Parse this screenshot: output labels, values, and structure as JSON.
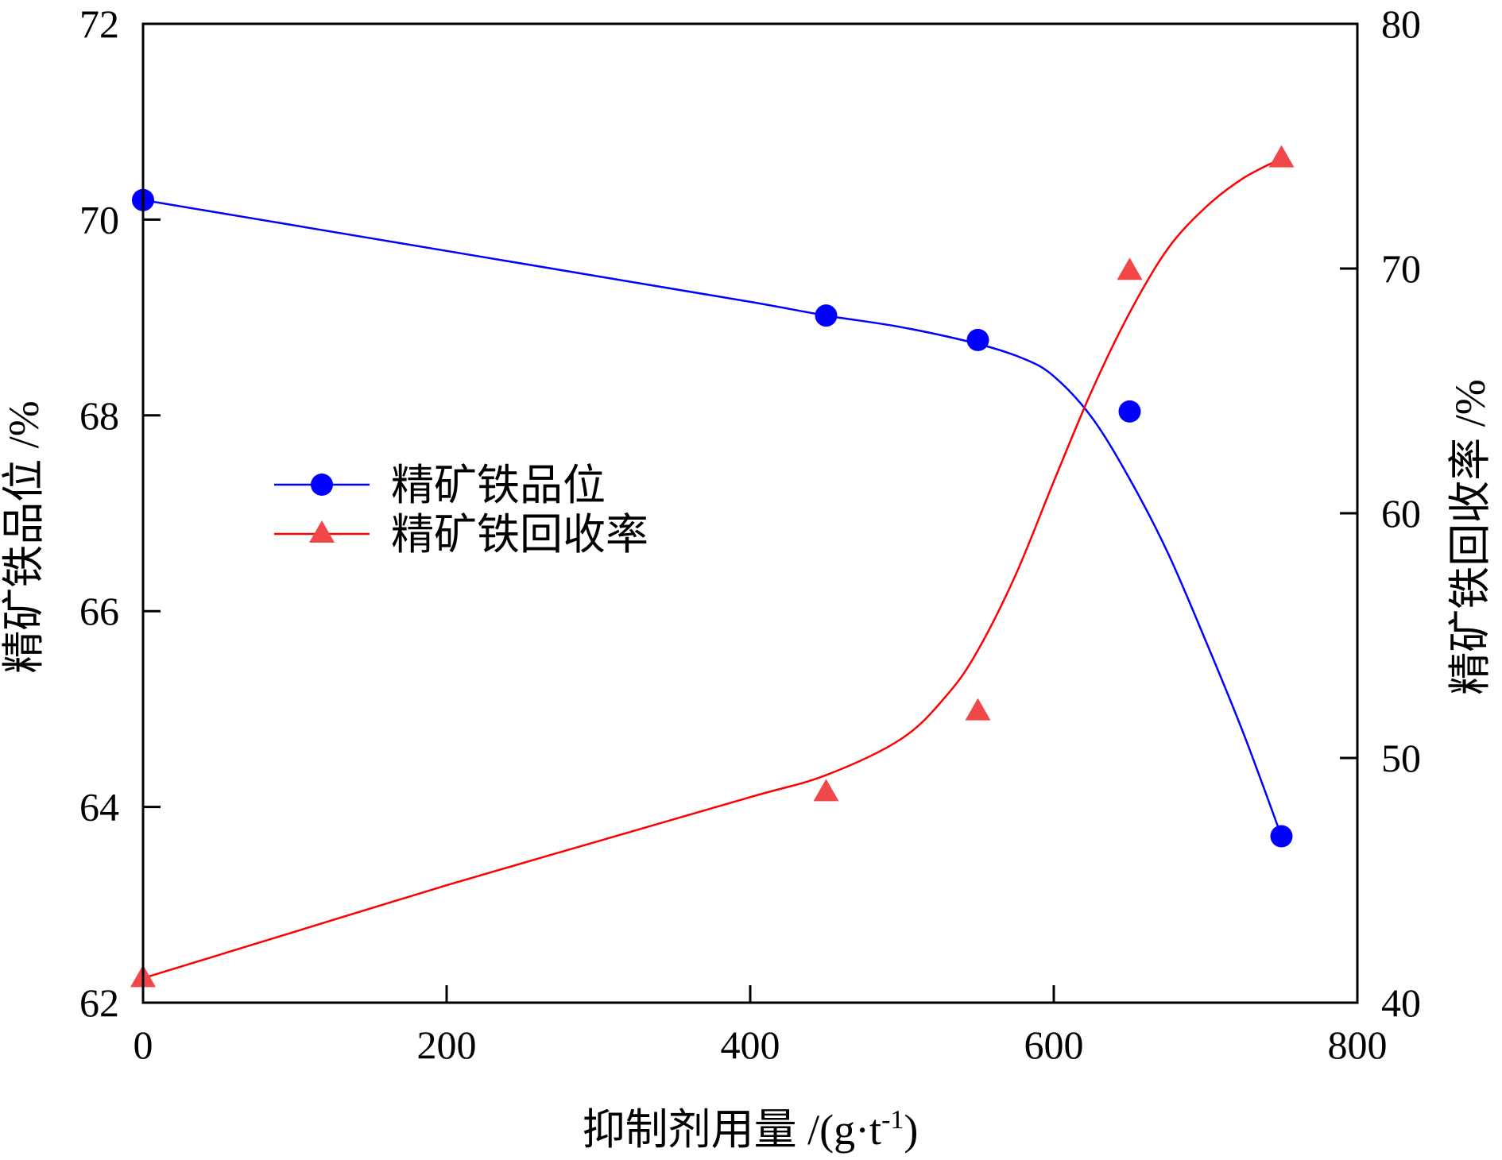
{
  "chart_data": {
    "type": "line",
    "xlabel": "抑制剂用量  /(g·t",
    "xlabel_sup": "-1",
    "xlabel_end": ")",
    "ylabel_left": "精矿铁品位  /%",
    "ylabel_right": "精矿铁回收率  /%",
    "xlim": [
      0,
      800
    ],
    "ylim_left": [
      62,
      72
    ],
    "ylim_right": [
      40,
      80
    ],
    "x_ticks": [
      0,
      200,
      400,
      600,
      800
    ],
    "y_left_ticks": [
      62,
      64,
      66,
      68,
      70,
      72
    ],
    "y_right_ticks": [
      40,
      50,
      60,
      70,
      80
    ],
    "grid": false,
    "legend_position": "left-middle",
    "series": [
      {
        "name": "精矿铁品位",
        "axis": "left",
        "color": "#0000ff",
        "marker": "circle",
        "x": [
          0,
          450,
          550,
          650,
          750
        ],
        "y": [
          70.2,
          69.02,
          68.77,
          68.04,
          63.7
        ]
      },
      {
        "name": "精矿铁回收率",
        "axis": "right",
        "color": "#ff0000",
        "marker_color": "#f04848",
        "marker": "triangle",
        "x": [
          0,
          450,
          550,
          650,
          750
        ],
        "y": [
          41.0,
          48.6,
          51.9,
          69.9,
          74.5
        ]
      }
    ],
    "fit_curves": [
      {
        "series": "精矿铁品位",
        "axis": "left",
        "x": [
          0,
          100,
          200,
          300,
          400,
          450,
          500,
          550,
          580,
          600,
          625,
          650,
          675,
          700,
          725,
          750
        ],
        "y": [
          70.2,
          69.94,
          69.68,
          69.42,
          69.16,
          69.02,
          68.9,
          68.73,
          68.58,
          68.4,
          67.98,
          67.35,
          66.6,
          65.7,
          64.75,
          63.7
        ]
      },
      {
        "series": "精矿铁回收率",
        "axis": "right",
        "x": [
          0,
          100,
          200,
          300,
          400,
          450,
          500,
          530,
          550,
          575,
          600,
          625,
          650,
          675,
          700,
          725,
          750
        ],
        "y": [
          41.0,
          42.9,
          44.8,
          46.6,
          48.4,
          49.3,
          50.8,
          52.6,
          54.4,
          57.5,
          61.3,
          65.0,
          68.2,
          70.8,
          72.5,
          73.7,
          74.5
        ]
      }
    ]
  }
}
